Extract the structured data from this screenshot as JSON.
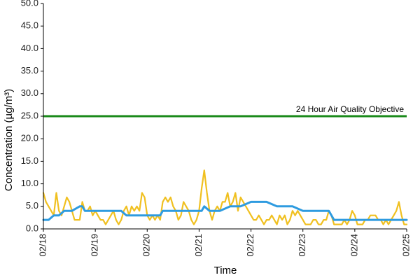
{
  "chart_data": {
    "type": "line",
    "title": "",
    "xlabel": "Time",
    "ylabel": "Concentration (µg/m³)",
    "ylim": [
      0,
      50
    ],
    "yticks": [
      0,
      5,
      10,
      15,
      20,
      25,
      30,
      35,
      40,
      45,
      50
    ],
    "ytick_labels": [
      "0.0",
      "5.0",
      "10.0",
      "15.0",
      "20.0",
      "25.0",
      "30.0",
      "35.0",
      "40.0",
      "45.0",
      "50.0"
    ],
    "xlim": [
      "02/18",
      "02/25"
    ],
    "xtick_labels": [
      "02/18",
      "02/19",
      "02/20",
      "02/21",
      "02/22",
      "02/23",
      "02/24",
      "02/25"
    ],
    "grid": false,
    "annotation": "24 Hour Air Quality Objective",
    "series": [
      {
        "name": "",
        "style": "hourly",
        "color": "#f0c020",
        "x": [
          0,
          0.05,
          0.1,
          0.15,
          0.2,
          0.25,
          0.3,
          0.35,
          0.4,
          0.45,
          0.5,
          0.55,
          0.6,
          0.65,
          0.7,
          0.75,
          0.8,
          0.85,
          0.9,
          0.95,
          1,
          1.05,
          1.1,
          1.15,
          1.2,
          1.25,
          1.3,
          1.35,
          1.4,
          1.45,
          1.5,
          1.55,
          1.6,
          1.65,
          1.7,
          1.75,
          1.8,
          1.85,
          1.9,
          1.95,
          2,
          2.05,
          2.1,
          2.15,
          2.2,
          2.25,
          2.3,
          2.35,
          2.4,
          2.45,
          2.5,
          2.55,
          2.6,
          2.65,
          2.7,
          2.75,
          2.8,
          2.85,
          2.9,
          2.95,
          3,
          3.05,
          3.1,
          3.15,
          3.2,
          3.25,
          3.3,
          3.35,
          3.4,
          3.45,
          3.5,
          3.55,
          3.6,
          3.65,
          3.7,
          3.75,
          3.8,
          3.85,
          3.9,
          3.95,
          4,
          4.05,
          4.1,
          4.15,
          4.2,
          4.25,
          4.3,
          4.35,
          4.4,
          4.45,
          4.5,
          4.55,
          4.6,
          4.65,
          4.7,
          4.75,
          4.8,
          4.85,
          4.9,
          4.95,
          5,
          5.05,
          5.1,
          5.15,
          5.2,
          5.25,
          5.3,
          5.35,
          5.4,
          5.45,
          5.5,
          5.55,
          5.6,
          5.65,
          5.7,
          5.75,
          5.8,
          5.85,
          5.9,
          5.95,
          6,
          6.05,
          6.1,
          6.15,
          6.2,
          6.25,
          6.3,
          6.35,
          6.4,
          6.45,
          6.5,
          6.55,
          6.6,
          6.65,
          6.7,
          6.75,
          6.8,
          6.85,
          6.9,
          6.95,
          7
        ],
        "values": [
          8,
          6,
          5,
          4,
          3,
          8,
          4,
          3,
          5,
          7,
          6,
          4,
          2,
          2,
          2,
          6,
          4,
          4,
          5,
          3,
          4,
          3,
          2,
          2,
          1,
          2,
          3,
          4,
          2,
          1,
          2,
          4,
          5,
          3,
          5,
          4,
          5,
          4,
          8,
          7,
          3,
          2,
          3,
          2,
          3,
          2,
          6,
          7,
          6,
          7,
          5,
          4,
          2,
          3,
          6,
          5,
          4,
          2,
          1,
          2,
          4,
          9,
          13,
          8,
          4,
          2,
          4,
          5,
          4,
          6,
          6,
          8,
          5,
          6,
          8,
          4,
          7,
          6,
          5,
          4,
          3,
          2,
          2,
          3,
          2,
          1,
          2,
          2,
          3,
          2,
          1,
          3,
          2,
          3,
          1,
          2,
          4,
          3,
          4,
          3,
          2,
          1,
          1,
          1,
          2,
          2,
          1,
          1,
          2,
          2,
          4,
          3,
          1,
          1,
          1,
          1,
          2,
          1,
          2,
          4,
          3,
          1,
          1,
          1,
          2,
          2,
          3,
          3,
          3,
          2,
          2,
          1,
          2,
          1,
          2,
          3,
          4,
          6,
          3,
          1,
          1
        ]
      },
      {
        "name": "",
        "style": "rolling-24h",
        "color": "#2e9be0",
        "x": [
          0,
          0.1,
          0.2,
          0.3,
          0.4,
          0.55,
          0.7,
          0.75,
          0.8,
          1,
          1.25,
          1.5,
          1.6,
          1.7,
          2,
          2.25,
          2.3,
          2.5,
          2.8,
          3,
          3.05,
          3.1,
          3.2,
          3.4,
          3.6,
          3.8,
          4,
          4.05,
          4.1,
          4.3,
          4.5,
          4.8,
          5,
          5.5,
          5.6,
          5.8,
          6,
          6.25,
          6.5,
          6.75,
          7
        ],
        "values": [
          2,
          2,
          3,
          3,
          4,
          4,
          5,
          5,
          4,
          4,
          4,
          4,
          3,
          3,
          3,
          3,
          4,
          4,
          4,
          4,
          4,
          5,
          4,
          4,
          5,
          5,
          6,
          6,
          6,
          6,
          5,
          5,
          4,
          4,
          2,
          2,
          2,
          2,
          2,
          2,
          2
        ]
      }
    ],
    "reference_lines": [
      {
        "label": "24 Hour Air Quality Objective",
        "value": 25,
        "color": "#1a8a1a"
      }
    ]
  }
}
